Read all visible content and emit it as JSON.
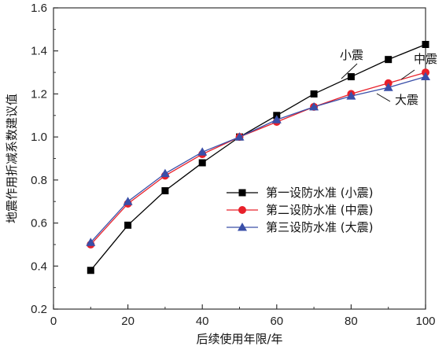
{
  "chart_data": {
    "type": "line",
    "title": "",
    "xlabel": "后续使用年限/年",
    "ylabel": "地震作用折减系数建议值",
    "xlim": [
      0,
      100
    ],
    "ylim": [
      0.2,
      1.6
    ],
    "xticks": [
      0,
      20,
      40,
      60,
      80,
      100
    ],
    "yticks": [
      0.2,
      0.4,
      0.6,
      0.8,
      1.0,
      1.2,
      1.4,
      1.6
    ],
    "ytick_labels": [
      "0.2",
      "0.4",
      "0.6",
      "0.8",
      "1.0",
      "1.2",
      "1.4",
      "1.6"
    ],
    "x": [
      10,
      20,
      30,
      40,
      50,
      60,
      70,
      80,
      90,
      100
    ],
    "legend_position": "center-right",
    "series": [
      {
        "name": "第一设防水准 (小震)",
        "marker": "square",
        "color": "#000000",
        "values": [
          0.38,
          0.59,
          0.75,
          0.88,
          1.0,
          1.1,
          1.2,
          1.28,
          1.36,
          1.43
        ]
      },
      {
        "name": "第二设防水准 (中震)",
        "marker": "circle",
        "color": "#e8202a",
        "values": [
          0.5,
          0.69,
          0.82,
          0.92,
          1.0,
          1.07,
          1.14,
          1.2,
          1.25,
          1.3
        ]
      },
      {
        "name": "第三设防水准 (大震)",
        "marker": "triangle",
        "color": "#3a4fa8",
        "values": [
          0.51,
          0.7,
          0.83,
          0.93,
          1.0,
          1.08,
          1.14,
          1.19,
          1.23,
          1.28
        ]
      }
    ],
    "annotations": [
      {
        "text": "小震",
        "target_series": 0
      },
      {
        "text": "中震",
        "target_series": 1
      },
      {
        "text": "大震",
        "target_series": 2
      }
    ]
  }
}
